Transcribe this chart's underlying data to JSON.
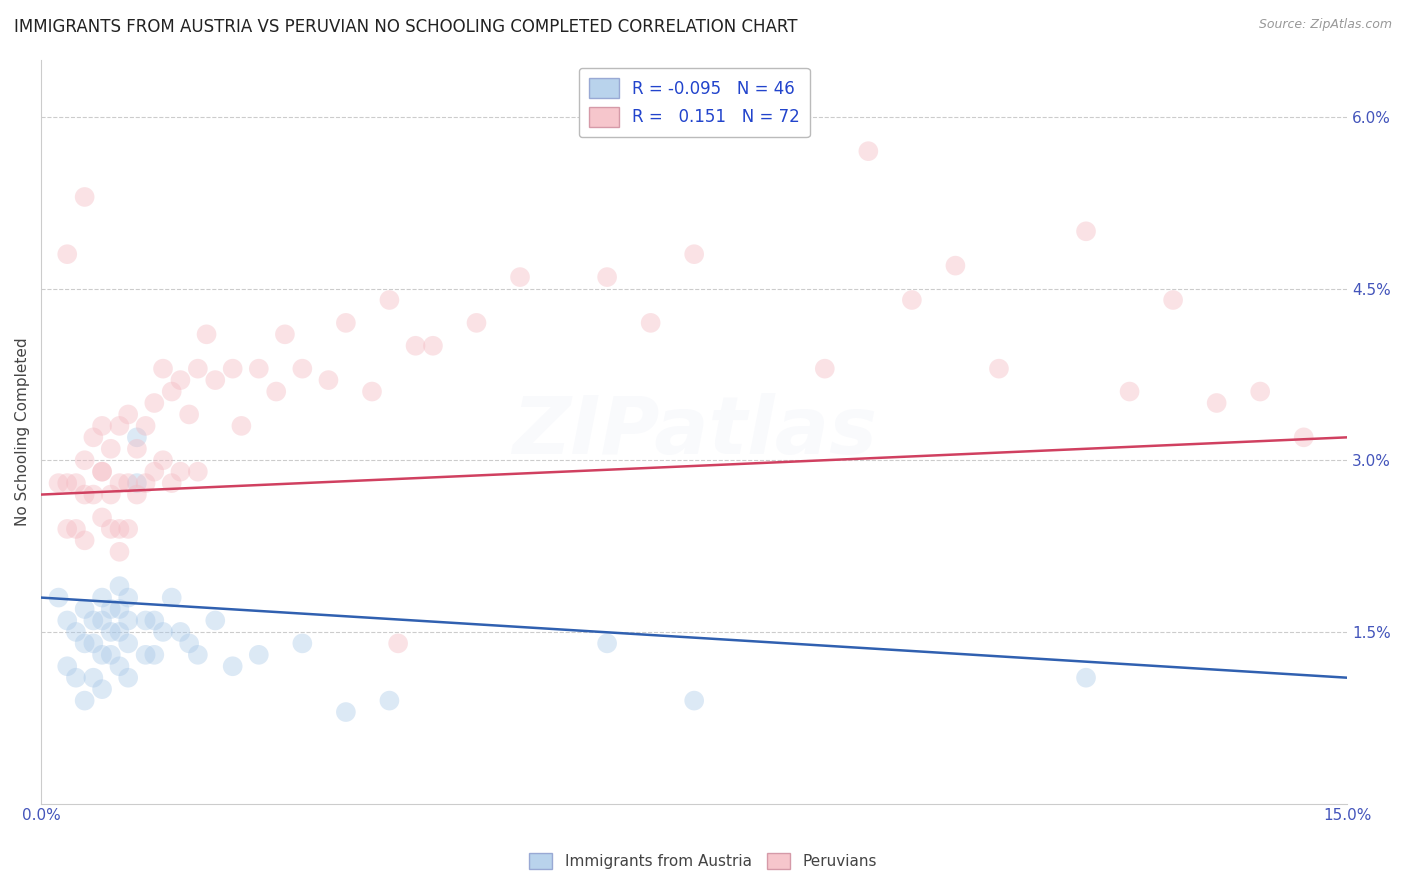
{
  "title": "IMMIGRANTS FROM AUSTRIA VS PERUVIAN NO SCHOOLING COMPLETED CORRELATION CHART",
  "source": "Source: ZipAtlas.com",
  "ylabel": "No Schooling Completed",
  "xlim": [
    0.0,
    0.15
  ],
  "ylim": [
    0.0,
    0.065
  ],
  "xticks": [
    0.0,
    0.025,
    0.05,
    0.075,
    0.1,
    0.125,
    0.15
  ],
  "xticklabels": [
    "0.0%",
    "",
    "",
    "",
    "",
    "",
    "15.0%"
  ],
  "yticks_right": [
    0.015,
    0.03,
    0.045,
    0.06
  ],
  "yticklabels_right": [
    "1.5%",
    "3.0%",
    "4.5%",
    "6.0%"
  ],
  "legend_r_blue": "-0.095",
  "legend_n_blue": "46",
  "legend_r_pink": "0.151",
  "legend_n_pink": "72",
  "blue_color": "#a8c8e8",
  "pink_color": "#f4b8c0",
  "blue_line_color": "#3060b0",
  "pink_line_color": "#d04060",
  "background_color": "#ffffff",
  "grid_color": "#cccccc",
  "blue_scatter_x": [
    0.002,
    0.003,
    0.003,
    0.004,
    0.004,
    0.005,
    0.005,
    0.005,
    0.006,
    0.006,
    0.006,
    0.007,
    0.007,
    0.007,
    0.007,
    0.008,
    0.008,
    0.008,
    0.009,
    0.009,
    0.009,
    0.009,
    0.01,
    0.01,
    0.01,
    0.01,
    0.011,
    0.011,
    0.012,
    0.012,
    0.013,
    0.013,
    0.014,
    0.015,
    0.016,
    0.017,
    0.018,
    0.02,
    0.022,
    0.025,
    0.03,
    0.035,
    0.04,
    0.065,
    0.075,
    0.12
  ],
  "blue_scatter_y": [
    0.018,
    0.016,
    0.012,
    0.015,
    0.011,
    0.017,
    0.014,
    0.009,
    0.016,
    0.014,
    0.011,
    0.018,
    0.016,
    0.013,
    0.01,
    0.017,
    0.015,
    0.013,
    0.019,
    0.017,
    0.015,
    0.012,
    0.018,
    0.016,
    0.014,
    0.011,
    0.032,
    0.028,
    0.016,
    0.013,
    0.016,
    0.013,
    0.015,
    0.018,
    0.015,
    0.014,
    0.013,
    0.016,
    0.012,
    0.013,
    0.014,
    0.008,
    0.009,
    0.014,
    0.009,
    0.011
  ],
  "pink_scatter_x": [
    0.002,
    0.003,
    0.003,
    0.004,
    0.004,
    0.005,
    0.005,
    0.005,
    0.006,
    0.006,
    0.007,
    0.007,
    0.007,
    0.008,
    0.008,
    0.008,
    0.009,
    0.009,
    0.009,
    0.01,
    0.01,
    0.01,
    0.011,
    0.011,
    0.012,
    0.012,
    0.013,
    0.013,
    0.014,
    0.014,
    0.015,
    0.015,
    0.016,
    0.016,
    0.017,
    0.018,
    0.018,
    0.019,
    0.02,
    0.022,
    0.023,
    0.025,
    0.027,
    0.028,
    0.03,
    0.033,
    0.035,
    0.038,
    0.04,
    0.043,
    0.045,
    0.05,
    0.055,
    0.065,
    0.07,
    0.075,
    0.09,
    0.095,
    0.1,
    0.105,
    0.11,
    0.12,
    0.125,
    0.13,
    0.135,
    0.14,
    0.145,
    0.003,
    0.005,
    0.007,
    0.009,
    0.041
  ],
  "pink_scatter_y": [
    0.028,
    0.028,
    0.024,
    0.028,
    0.024,
    0.03,
    0.027,
    0.023,
    0.032,
    0.027,
    0.033,
    0.029,
    0.025,
    0.031,
    0.027,
    0.024,
    0.033,
    0.028,
    0.024,
    0.034,
    0.028,
    0.024,
    0.031,
    0.027,
    0.033,
    0.028,
    0.035,
    0.029,
    0.038,
    0.03,
    0.036,
    0.028,
    0.037,
    0.029,
    0.034,
    0.038,
    0.029,
    0.041,
    0.037,
    0.038,
    0.033,
    0.038,
    0.036,
    0.041,
    0.038,
    0.037,
    0.042,
    0.036,
    0.044,
    0.04,
    0.04,
    0.042,
    0.046,
    0.046,
    0.042,
    0.048,
    0.038,
    0.057,
    0.044,
    0.047,
    0.038,
    0.05,
    0.036,
    0.044,
    0.035,
    0.036,
    0.032,
    0.048,
    0.053,
    0.029,
    0.022,
    0.014
  ],
  "title_fontsize": 12,
  "axis_fontsize": 11,
  "tick_fontsize": 11,
  "legend_fontsize": 12,
  "marker_size": 200,
  "marker_alpha": 0.4,
  "watermark_text": "ZIPatlas",
  "watermark_alpha": 0.07
}
